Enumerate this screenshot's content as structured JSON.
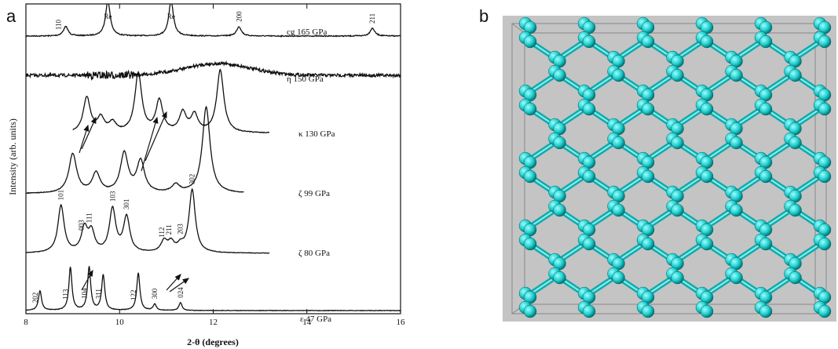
{
  "panel_a": {
    "label": "a"
  },
  "panel_b": {
    "label": "b"
  },
  "chart_data": {
    "type": "line",
    "xlabel": "2-θ (degrees)",
    "ylabel": "Intensity (arb. units)",
    "xlim": [
      8,
      16
    ],
    "xticks": [
      8,
      10,
      12,
      14,
      16
    ],
    "series": [
      {
        "name": "cg 165 GPa",
        "peaks": {
          "x": [
            8.85,
            9.75,
            11.1,
            12.55,
            15.4
          ],
          "heights": [
            12,
            45,
            45,
            12,
            10
          ]
        },
        "labels": [
          {
            "text": "110",
            "x": 8.7
          },
          {
            "text": "Re",
            "x": 9.75
          },
          {
            "text": "Re",
            "x": 11.1
          },
          {
            "text": "200",
            "x": 12.55
          },
          {
            "text": "211",
            "x": 15.4
          }
        ]
      },
      {
        "name": "η 150 GPa",
        "peaks": {
          "x": [
            12.1
          ],
          "heights": [
            15
          ]
        },
        "labels": []
      },
      {
        "name": "κ 130 GPa",
        "peaks": {
          "x": [
            9.3,
            9.6,
            9.85,
            10.4,
            10.85,
            11.35,
            11.6,
            12.15
          ],
          "heights": [
            45,
            18,
            12,
            75,
            40,
            25,
            22,
            80
          ]
        },
        "labels": []
      },
      {
        "name": "ζ 99 GPa",
        "peaks": {
          "x": [
            9.0,
            9.5,
            10.1,
            10.45,
            11.2,
            11.85
          ],
          "heights": [
            50,
            25,
            50,
            40,
            10,
            110
          ]
        },
        "labels": []
      },
      {
        "name": "ζ 80 GPa",
        "peaks": {
          "x": [
            8.75,
            9.25,
            9.4,
            9.85,
            10.15,
            10.95,
            11.1,
            11.3,
            11.55
          ],
          "heights": [
            60,
            30,
            25,
            55,
            45,
            14,
            12,
            8,
            80
          ]
        },
        "labels": [
          {
            "text": "101",
            "x": 8.75
          },
          {
            "text": "003",
            "x": 9.18
          },
          {
            "text": "111",
            "x": 9.35
          },
          {
            "text": "103",
            "x": 9.85
          },
          {
            "text": "301",
            "x": 10.15
          },
          {
            "text": "112",
            "x": 10.9
          },
          {
            "text": "211",
            "x": 11.05
          },
          {
            "text": "203",
            "x": 11.3
          },
          {
            "text": "302",
            "x": 11.55
          }
        ]
      },
      {
        "name": "ε 47 GPa",
        "peaks": {
          "x": [
            8.3,
            8.95,
            9.35,
            9.65,
            10.4,
            10.75,
            11.3
          ],
          "heights": [
            25,
            55,
            55,
            45,
            48,
            8,
            10
          ]
        },
        "labels": [
          {
            "text": "202",
            "x": 8.2
          },
          {
            "text": "113",
            "x": 8.85
          },
          {
            "text": "104",
            "x": 9.25
          },
          {
            "text": "311",
            "x": 9.55
          },
          {
            "text": "122",
            "x": 10.3
          },
          {
            "text": "300",
            "x": 10.75
          },
          {
            "text": "024",
            "x": 11.3
          }
        ]
      }
    ]
  }
}
